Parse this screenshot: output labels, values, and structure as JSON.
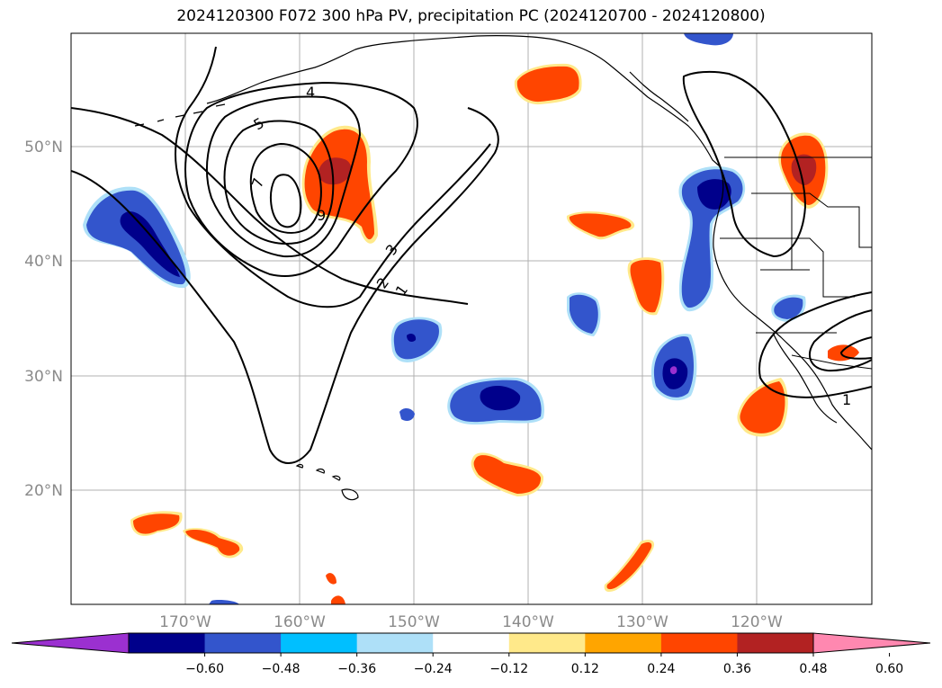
{
  "title": "2024120300 F072 300 hPa PV, precipitation PC (2024120700 - 2024120800)",
  "map": {
    "lat_labels": [
      "50°N",
      "40°N",
      "30°N",
      "20°N"
    ],
    "lon_labels": [
      "170°W",
      "160°W",
      "150°W",
      "140°W",
      "130°W",
      "120°W"
    ],
    "pv_contour_labels": [
      "1",
      "2",
      "3",
      "4",
      "5",
      "7",
      "9",
      "1"
    ]
  },
  "colorbar": {
    "under_color": "#9b30d0",
    "over_color": "#ff88b0",
    "colors": [
      "#00008b",
      "#3355cc",
      "#00bfff",
      "#aee0f8",
      "#ffffff",
      "#ffe98a",
      "#ffa500",
      "#ff4500",
      "#b22222"
    ],
    "ticks": [
      "−0.60",
      "−0.48",
      "−0.36",
      "−0.24",
      "−0.12",
      "0.12",
      "0.24",
      "0.36",
      "0.48",
      "0.60"
    ]
  }
}
